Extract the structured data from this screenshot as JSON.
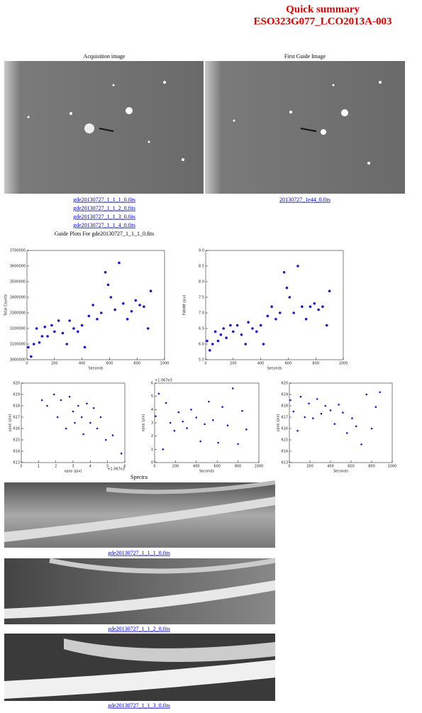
{
  "header": {
    "title": "Quick summary",
    "subtitle": "ESO323G077_LCO2013A-003"
  },
  "images": {
    "acquisition_label": "Acquisition image",
    "guide_label": "First Guide Image",
    "acquisition_links": [
      "gde20130727_1_1_1_0.fits",
      "gde20130727_1_1_2_0.fits",
      "gde20130727_1_1_3_0.fits",
      "gde20130727_1_1_4_0.fits"
    ],
    "guide_link": "20130727_1e44_0.fits"
  },
  "plots_title": "Guide Plots For gde20130727_1_1_1_0.fits",
  "plots": [
    {
      "type": "scatter",
      "xlabel": "Seconds",
      "ylabel": "Total Counts",
      "color": "#1a1acc",
      "x": [
        10,
        30,
        50,
        70,
        90,
        110,
        130,
        150,
        180,
        200,
        230,
        260,
        290,
        310,
        340,
        370,
        400,
        420,
        450,
        480,
        510,
        540,
        570,
        590,
        610,
        640,
        670,
        700,
        730,
        760,
        790,
        820,
        850,
        880,
        900
      ],
      "y": [
        3080000,
        3020000,
        3100000,
        3200000,
        3110000,
        3150000,
        3210000,
        3150000,
        3220000,
        3180000,
        3250000,
        3170000,
        3100000,
        3250000,
        3200000,
        3180000,
        3220000,
        3080000,
        3280000,
        3350000,
        3260000,
        3300000,
        3560000,
        3480000,
        3400000,
        3320000,
        3620000,
        3360000,
        3260000,
        3310000,
        3380000,
        3350000,
        3340000,
        3200000,
        3440000
      ],
      "xlim": [
        0,
        1000
      ],
      "xticks": [
        0,
        200,
        400,
        600,
        800,
        1000
      ],
      "ylim": [
        3000000,
        3700000
      ],
      "yticks": [
        3000000,
        3100000,
        3200000,
        3300000,
        3400000,
        3500000,
        3600000,
        3700000
      ]
    },
    {
      "type": "scatter",
      "xlabel": "Seconds",
      "ylabel": "FWHM (pix)",
      "color": "#1a1acc",
      "x": [
        10,
        30,
        50,
        70,
        90,
        110,
        130,
        150,
        180,
        200,
        230,
        260,
        290,
        310,
        340,
        370,
        400,
        420,
        450,
        480,
        510,
        540,
        570,
        590,
        610,
        640,
        670,
        700,
        730,
        760,
        790,
        820,
        850,
        880,
        900
      ],
      "y": [
        6.1,
        5.8,
        6.0,
        6.4,
        6.1,
        6.3,
        6.5,
        6.2,
        6.6,
        6.4,
        6.6,
        6.3,
        6.0,
        6.7,
        6.5,
        6.4,
        6.6,
        6.0,
        6.9,
        7.2,
        6.8,
        7.0,
        8.3,
        7.8,
        7.5,
        7.0,
        8.5,
        7.2,
        6.8,
        7.2,
        7.3,
        7.1,
        7.2,
        6.6,
        7.7
      ],
      "xlim": [
        0,
        1000
      ],
      "xticks": [
        0,
        200,
        400,
        600,
        800,
        1000
      ],
      "ylim": [
        5.5,
        9.0
      ],
      "yticks": [
        5.5,
        {
          "value": 6,
          "label": "6.0"
        },
        6.5,
        {
          "value": 7,
          "label": "7.0"
        },
        7.5,
        {
          "value": 8,
          "label": "8.0"
        },
        8.5,
        {
          "value": 9,
          "label": "9.0"
        }
      ]
    },
    {
      "type": "scatter",
      "xlabel": "xpos (pix)",
      "ylabel": "ypos (pix)",
      "x_offset": "+1.067e3",
      "color": "#1a1acc",
      "x": [
        1.2,
        1.5,
        1.9,
        2.1,
        2.3,
        2.6,
        2.8,
        3.0,
        3.1,
        3.3,
        3.5,
        3.6,
        3.8,
        4.0,
        4.2,
        4.4,
        4.6,
        4.9,
        5.3,
        5.8
      ],
      "y": [
        618.5,
        618,
        619,
        617,
        618.5,
        616,
        618.8,
        617.5,
        616.5,
        618,
        617,
        615.5,
        618.2,
        616.5,
        617.8,
        616,
        617,
        615,
        615.4,
        613.8
      ],
      "xlim": [
        0,
        6
      ],
      "xticks": [
        0,
        1,
        2,
        3,
        4,
        5,
        6
      ],
      "ylim": [
        613,
        620
      ],
      "yticks": [
        613,
        614,
        615,
        616,
        617,
        618,
        619,
        620
      ]
    },
    {
      "type": "scatter",
      "xlabel": "Seconds",
      "ylabel": "xpos (pix)",
      "y_offset": "+1.067e3",
      "color": "#1a1acc",
      "x": [
        10,
        40,
        80,
        110,
        150,
        190,
        230,
        270,
        310,
        350,
        400,
        440,
        480,
        520,
        560,
        610,
        650,
        700,
        750,
        800,
        840,
        880
      ],
      "y": [
        3.5,
        5.2,
        1.0,
        4.5,
        3.0,
        2.4,
        3.8,
        3.1,
        2.6,
        4.0,
        3.4,
        1.6,
        2.9,
        4.6,
        3.2,
        1.5,
        4.2,
        2.8,
        5.6,
        1.4,
        3.9,
        2.5
      ],
      "xlim": [
        0,
        1000
      ],
      "xticks": [
        0,
        200,
        400,
        600,
        800,
        1000
      ],
      "ylim": [
        0,
        6
      ],
      "yticks": [
        0,
        1,
        2,
        3,
        4,
        5,
        6
      ]
    },
    {
      "type": "scatter",
      "xlabel": "Seconds",
      "ylabel": "ypos (pix)",
      "color": "#1a1acc",
      "x": [
        10,
        40,
        80,
        110,
        150,
        190,
        230,
        270,
        310,
        350,
        400,
        440,
        480,
        520,
        560,
        610,
        650,
        700,
        750,
        800,
        840,
        880
      ],
      "y": [
        618.5,
        617.5,
        615.8,
        618.8,
        617,
        618.2,
        616.9,
        618.6,
        617.3,
        618,
        617.6,
        616.4,
        618.1,
        617.4,
        615.6,
        616.9,
        616.2,
        614.6,
        619,
        616,
        617.9,
        619.2
      ],
      "xlim": [
        0,
        1000
      ],
      "xticks": [
        0,
        200,
        400,
        600,
        800,
        1000
      ],
      "ylim": [
        613,
        620
      ],
      "yticks": [
        613,
        614,
        615,
        616,
        617,
        618,
        619,
        620
      ]
    }
  ],
  "spectra": {
    "title": "Spectra",
    "links": [
      "gde20130727_1_1_1_0.fits",
      "gde20130727_1_1_2_0.fits",
      "gde20130727_1_1_3_0.fits"
    ]
  }
}
